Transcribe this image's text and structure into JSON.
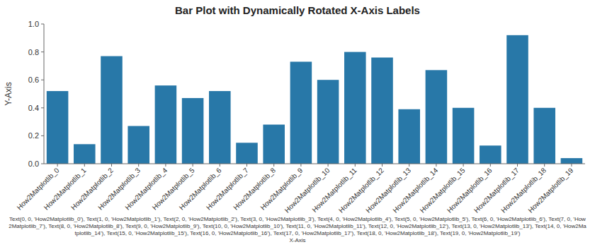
{
  "chart_data": {
    "type": "bar",
    "title": "Bar Plot with Dynamically Rotated X-Axis Labels",
    "y_label": "Y-Axis",
    "x_label": "Text(0, 0, 'How2Matplotlib_0'), Text(1, 0, 'How2Matplotlib_1'), Text(2, 0, 'How2Matplotlib_2'), Text(3, 0, 'How2Matplotlib_3'), Text(4, 0, 'How2Matplotlib_4'), Text(5, 0, 'How2Matplotlib_5'), Text(6, 0, 'How2Matplotlib_6'), Text(7, 0, 'How2Matplotlib_7'), Text(8, 0, 'How2Matplotlib_8'), Text(9, 0, 'How2Matplotlib_9'), Text(10, 0, 'How2Matplotlib_10'), Text(11, 0, 'How2Matplotlib_11'), Text(12, 0, 'How2Matplotlib_12'), Text(13, 0, 'How2Matplotlib_13'), Text(14, 0, 'How2Matplotlib_14'), Text(15, 0, 'How2Matplotlib_15'), Text(16, 0, 'How2Matplotlib_16'), Text(17, 0, 'How2Matplotlib_17'), Text(18, 0, 'How2Matplotlib_18'), Text(19, 0, 'How2Matplotlib_19')\nX-Axis",
    "categories": [
      "How2Matplotlib_0",
      "How2Matplotlib_1",
      "How2Matplotlib_2",
      "How2Matplotlib_3",
      "How2Matplotlib_4",
      "How2Matplotlib_5",
      "How2Matplotlib_6",
      "How2Matplotlib_7",
      "How2Matplotlib_8",
      "How2Matplotlib_9",
      "How2Matplotlib_10",
      "How2Matplotlib_11",
      "How2Matplotlib_12",
      "How2Matplotlib_13",
      "How2Matplotlib_14",
      "How2Matplotlib_15",
      "How2Matplotlib_16",
      "How2Matplotlib_17",
      "How2Matplotlib_18",
      "How2Matplotlib_19"
    ],
    "values": [
      0.52,
      0.14,
      0.77,
      0.27,
      0.56,
      0.47,
      0.52,
      0.15,
      0.28,
      0.73,
      0.6,
      0.8,
      0.76,
      0.39,
      0.67,
      0.4,
      0.13,
      0.92,
      0.4,
      0.04
    ],
    "color": "#2878a8",
    "ylim": [
      0,
      1
    ],
    "yticks": [
      {
        "value": 0,
        "label": "0.0"
      },
      {
        "value": 0.2,
        "label": "0.2"
      },
      {
        "value": 0.4,
        "label": "0.4"
      },
      {
        "value": 0.6,
        "label": "0.6"
      },
      {
        "value": 0.8,
        "label": "0.8"
      },
      {
        "value": 1,
        "label": "1.0"
      }
    ],
    "grid": false
  }
}
